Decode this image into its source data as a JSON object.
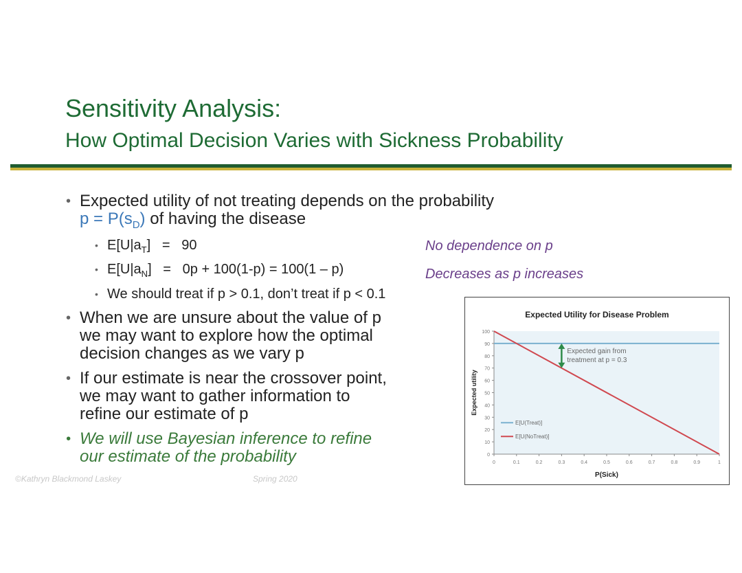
{
  "slide": {
    "title": "Sensitivity Analysis:",
    "subtitle": "How Optimal Decision Varies with Sickness Probability"
  },
  "bullets": {
    "b1_line1": "Expected utility of not treating depends on the probability",
    "b1_line2_pre": "p = P(s",
    "b1_line2_sub": "D",
    "b1_line2_post": ")",
    "b1_line2_tail": " of having the disease",
    "s1_pre": "E[U|a",
    "s1_sub": "T",
    "s1_post": "]   =   90",
    "s2_pre": "E[U|a",
    "s2_sub": "N",
    "s2_post": "]   =   0p + 100(1-p) = 100(1 – p)",
    "s3": "We should treat if p > 0.1, don’t treat if p < 0.1",
    "b2_l1": "When we are unsure about the value of p",
    "b2_l2": "we may want to explore how the optimal",
    "b2_l3": "decision changes as we vary p",
    "b3_l1": "If our estimate is near the crossover point,",
    "b3_l2": "we may want to gather information to",
    "b3_l3": "refine our estimate of p",
    "b4_l1": "We will use Bayesian inference to refine",
    "b4_l2": "our estimate of the probability"
  },
  "notes": {
    "n1": "No dependence on p",
    "n2": "Decreases as p increases"
  },
  "footer": {
    "left": "©Kathryn Blackmond Laskey",
    "right": "Spring 2020"
  },
  "colors": {
    "title_green": "#1e6b34",
    "treat_line": "#7ab1cf",
    "notreat_line": "#d0484f",
    "arrow": "#2e8b4a",
    "plot_bg": "#eaf3f8"
  },
  "chart_data": {
    "type": "line",
    "title": "Expected Utility for Disease Problem",
    "xlabel": "P(Sick)",
    "ylabel": "Expected utility",
    "xlim": [
      0,
      1
    ],
    "ylim": [
      0,
      100
    ],
    "x_ticks": [
      "0",
      "0.1",
      "0.2",
      "0.3",
      "0.4",
      "0.5",
      "0.6",
      "0.7",
      "0.8",
      "0.9",
      "1"
    ],
    "y_ticks": [
      "0",
      "10",
      "20",
      "30",
      "40",
      "50",
      "60",
      "70",
      "80",
      "90",
      "100"
    ],
    "series": [
      {
        "name": "E[U(Treat)]",
        "x": [
          0,
          1
        ],
        "y": [
          90,
          90
        ]
      },
      {
        "name": "E[U(NoTreat)]",
        "x": [
          0,
          1
        ],
        "y": [
          100,
          0
        ]
      }
    ],
    "annotation": {
      "text_line1": "Expected gain from",
      "text_line2": "treatment at p = 0.3",
      "x": 0.3,
      "y_from": 70,
      "y_to": 90
    },
    "legend_position": "bottom-left",
    "grid": false
  }
}
